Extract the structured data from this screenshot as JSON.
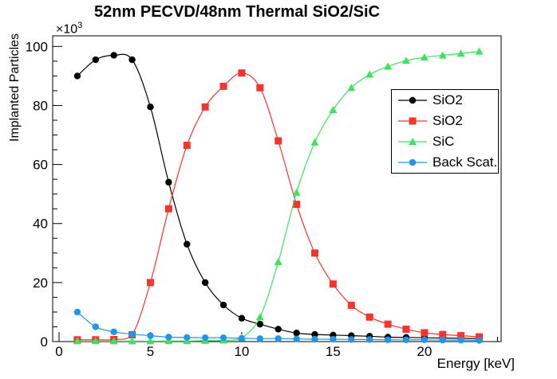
{
  "title": "52nm PECVD/48nm Thermal SiO2/SiC",
  "y_multiplier": {
    "base": "×10",
    "exponent": "3"
  },
  "legend": {
    "entries": [
      {
        "id": "sio2-pecvd",
        "label": "SiO2",
        "color": "#000000",
        "marker": "circle"
      },
      {
        "id": "sio2-thermal",
        "label": "SiO2",
        "color": "#f5342c",
        "marker": "square"
      },
      {
        "id": "sic",
        "label": "SiC",
        "color": "#3ce45e",
        "marker": "triangle"
      },
      {
        "id": "back-scat",
        "label": "Back Scat.",
        "color": "#2294ea",
        "marker": "circle"
      }
    ]
  },
  "chart_data": {
    "type": "line",
    "title": "52nm PECVD/48nm Thermal SiO2/SiC",
    "xlabel": "Energy [keV]",
    "ylabel": "Implanted Particles",
    "y_units": "particles ×10³",
    "grid": false,
    "legend_position": "middle-right",
    "xlim": [
      -0.35,
      24.2
    ],
    "ylim": [
      0,
      103.6
    ],
    "x_major_ticks": [
      0,
      5,
      10,
      15,
      20
    ],
    "x_minor_step": 1,
    "y_major_ticks": [
      0,
      20,
      40,
      60,
      80,
      100
    ],
    "y_minor_step": 5,
    "x": [
      1,
      2,
      3,
      4,
      5,
      6,
      7,
      8,
      9,
      10,
      11,
      12,
      13,
      14,
      15,
      16,
      17,
      18,
      19,
      20,
      21,
      22,
      23
    ],
    "series": [
      {
        "id": "sio2-pecvd",
        "name": "SiO2",
        "color": "#000000",
        "marker": "circle",
        "values": [
          90,
          95.5,
          97,
          95.5,
          79.5,
          54,
          33,
          20,
          12.4,
          7.9,
          5.9,
          4.2,
          2.9,
          2.4,
          2.2,
          2.0,
          1.8,
          1.5,
          1.4,
          1.3,
          1.2,
          1.1,
          1.0
        ]
      },
      {
        "id": "sio2-thermal",
        "name": "SiO2",
        "color": "#f5342c",
        "marker": "square",
        "values": [
          0.6,
          0.6,
          0.7,
          2.3,
          20,
          45,
          66.5,
          79.5,
          86.5,
          91,
          86,
          68,
          46.5,
          30,
          19.5,
          12.3,
          8.3,
          5.9,
          4.2,
          3.0,
          2.4,
          2.0,
          1.6
        ]
      },
      {
        "id": "sic",
        "name": "SiC",
        "color": "#3ce45e",
        "marker": "triangle",
        "values": [
          0.1,
          0.1,
          0.1,
          0.1,
          0.15,
          0.2,
          0.2,
          0.3,
          0.4,
          1.3,
          8.3,
          27,
          50.5,
          67.5,
          78.5,
          86,
          90.5,
          93.2,
          95.2,
          96.3,
          97,
          97.6,
          98.3
        ]
      },
      {
        "id": "back-scat",
        "name": "Back Scat.",
        "color": "#2294ea",
        "marker": "circle",
        "values": [
          10,
          5,
          3.3,
          2.5,
          2.0,
          1.5,
          1.4,
          1.3,
          1.3,
          1.1,
          1.0,
          1.0,
          0.9,
          0.8,
          0.8,
          0.7,
          0.7,
          0.6,
          0.6,
          0.6,
          0.5,
          0.5,
          0.4
        ]
      }
    ]
  }
}
